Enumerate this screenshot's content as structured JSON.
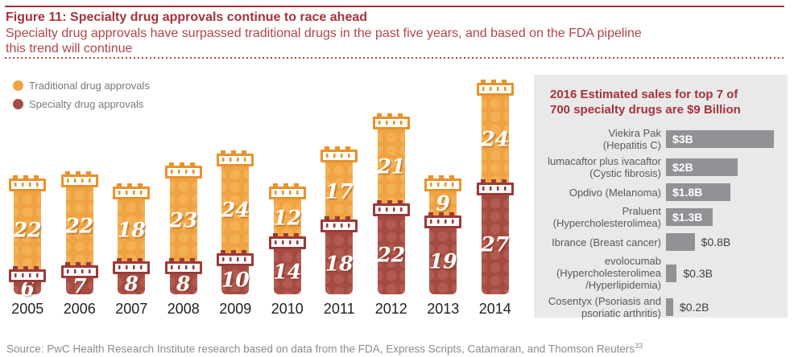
{
  "header": {
    "title": "Figure 11: Specialty drug approvals continue to race ahead",
    "subtitle_line1": "Specialty drug approvals have surpassed traditional drugs in the past five years, and based on the FDA pipeline",
    "subtitle_line2": "this trend will continue"
  },
  "colors": {
    "traditional": "#F0A342",
    "traditional_dot": "#F4B055",
    "traditional_cap": "#E8922C",
    "specialty": "#A64B42",
    "specialty_dot": "#B25B50",
    "specialty_cap": "#9A3B3A",
    "accent_red": "#A6333A",
    "subtitle_red": "#B2444A",
    "panel_bg": "#E9E9EA",
    "panel_bar": "#909295",
    "text_gray": "#77787B",
    "source_gray": "#8A8C8E",
    "year_text": "#231F20",
    "panel_label": "#58595B"
  },
  "chart_data": [
    {
      "type": "bar",
      "stacked": true,
      "orientation": "vertical",
      "categories": [
        "2005",
        "2006",
        "2007",
        "2008",
        "2009",
        "2010",
        "2011",
        "2012",
        "2013",
        "2014"
      ],
      "series": [
        {
          "name": "Traditional drug approvals",
          "color": "#F0A342",
          "values": [
            22,
            22,
            18,
            23,
            24,
            12,
            17,
            21,
            9,
            24
          ]
        },
        {
          "name": "Specialty drug approvals",
          "color": "#A64B42",
          "values": [
            6,
            7,
            8,
            8,
            10,
            14,
            18,
            22,
            19,
            27
          ]
        }
      ],
      "value_labels_shown": true,
      "legend_position": "top-left",
      "axis_lines": "none",
      "bar_style": "pill-bottle"
    },
    {
      "type": "bar",
      "orientation": "horizontal",
      "title": "2016 Estimated sales for top 7 of 700 specialty drugs are $9 Billion",
      "title_line1": "2016 Estimated sales for top 7 of",
      "title_line2": "700 specialty drugs are $9 Billion",
      "categories": [
        "Viekira Pak (Hepatitis C)",
        "lumacaftor plus ivacaftor (Cystic fibrosis)",
        "Opdivo (Melanoma)",
        "Praluent (Hypercholesterolimea)",
        "Ibrance (Breast cancer)",
        "evolocumab (Hypercholesterolimea /Hyperlipidemia)",
        "Cosentyx (Psoriasis and psoriatic arthritis)"
      ],
      "category_lines": [
        [
          "Viekira Pak",
          "(Hepatitis C)"
        ],
        [
          "lumacaftor plus ivacaftor",
          "(Cystic fibrosis)"
        ],
        [
          "Opdivo (Melanoma)"
        ],
        [
          "Praluent",
          "(Hypercholesterolimea)"
        ],
        [
          "Ibrance (Breast cancer)"
        ],
        [
          "evolocumab",
          "(Hypercholesterolimea",
          "/Hyperlipidemia)"
        ],
        [
          "Cosentyx (Psoriasis and",
          "psoriatic arthritis)"
        ]
      ],
      "values": [
        3,
        2,
        1.8,
        1.3,
        0.8,
        0.3,
        0.2
      ],
      "value_labels": [
        "$3B",
        "$2B",
        "$1.8B",
        "$1.3B",
        "$0.8B",
        "$0.3B",
        "$0.2B"
      ],
      "unit": "USD billions",
      "bar_color": "#909295"
    }
  ],
  "footer": {
    "source": "Source: PwC Health Research Institute research based on data from the FDA, Express Scripts, Catamaran, and Thomson Reuters",
    "footnote_ref": "33"
  }
}
